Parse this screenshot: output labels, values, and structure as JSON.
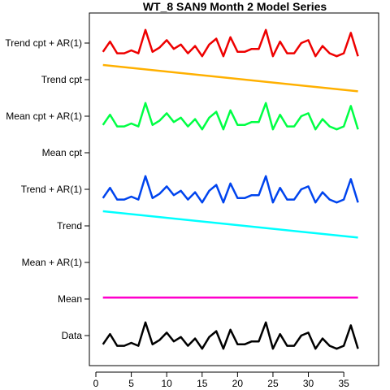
{
  "chart_data": {
    "type": "line",
    "title": "WT_8 SAN9 Month 2 Model Series",
    "xlabel": "",
    "ylabel": "",
    "x_range": [
      1,
      37
    ],
    "x_ticks": [
      0,
      5,
      10,
      15,
      20,
      25,
      30,
      35
    ],
    "grid": false,
    "legend": "none",
    "rows": [
      "Data",
      "Mean",
      "Mean + AR(1)",
      "Trend",
      "Trend + AR(1)",
      "Mean cpt",
      "Mean cpt + AR(1)",
      "Trend cpt",
      "Trend cpt + AR(1)"
    ],
    "data_pattern": [
      0.2,
      0.55,
      0.15,
      0.15,
      0.25,
      0.15,
      0.95,
      0.2,
      0.35,
      0.6,
      0.3,
      0.45,
      0.15,
      0.4,
      0.05,
      0.45,
      0.65,
      0.05,
      0.7,
      0.2,
      0.2,
      0.3,
      0.3,
      0.95,
      0.05,
      0.55,
      0.15,
      0.15,
      0.5,
      0.6,
      0.05,
      0.4,
      0.15,
      0.05,
      0.15,
      0.85,
      0.05
    ],
    "series": [
      {
        "name": "Data",
        "row": 0,
        "kind": "pattern",
        "color": "#000000"
      },
      {
        "name": "Mean",
        "row": 1,
        "kind": "flat",
        "level": 0.55,
        "color": "#ff00cc"
      },
      {
        "name": "Trend",
        "row": 3,
        "kind": "trend",
        "start": 1.0,
        "end": 0.1,
        "color": "#00ffff"
      },
      {
        "name": "Trend + AR(1)",
        "row": 4,
        "kind": "pattern",
        "color": "#0044ee"
      },
      {
        "name": "Mean cpt + AR(1)",
        "row": 6,
        "kind": "pattern",
        "color": "#00ff44"
      },
      {
        "name": "Trend cpt",
        "row": 7,
        "kind": "trend",
        "start": 1.0,
        "end": 0.1,
        "color": "#ffb000"
      },
      {
        "name": "Trend cpt + AR(1)",
        "row": 8,
        "kind": "pattern",
        "color": "#ee0000"
      }
    ]
  }
}
